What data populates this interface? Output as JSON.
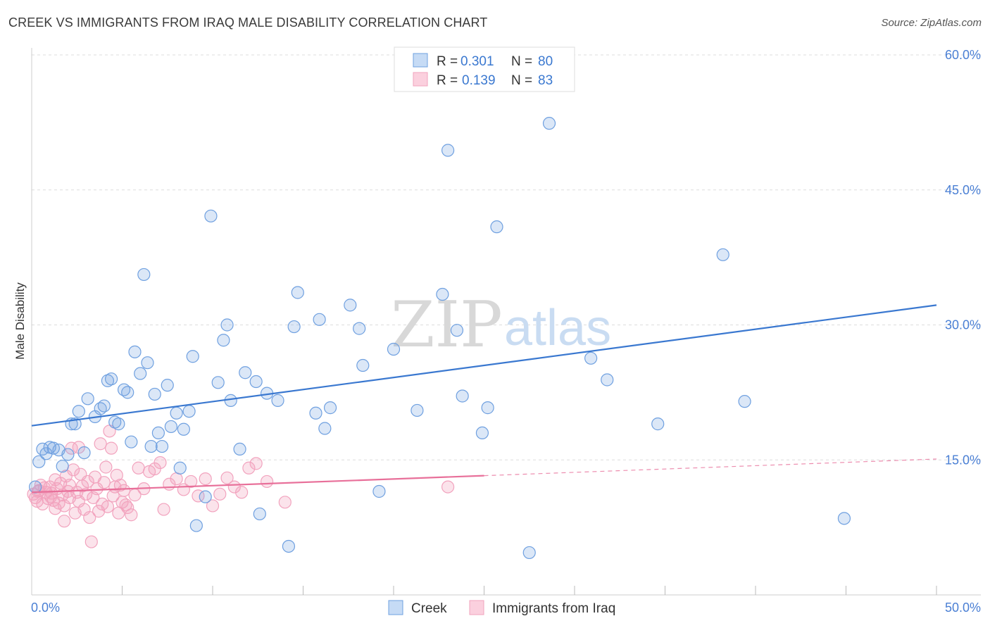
{
  "title": "CREEK VS IMMIGRANTS FROM IRAQ MALE DISABILITY CORRELATION CHART",
  "source": "Source: ZipAtlas.com",
  "watermark": {
    "zip": "ZIP",
    "atlas": "atlas"
  },
  "legend": {
    "rows": [
      {
        "r_label": "R =",
        "r_value": "0.301",
        "n_label": "N =",
        "n_value": "80"
      },
      {
        "r_label": "R =",
        "r_value": "0.139",
        "n_label": "N =",
        "n_value": "83"
      }
    ]
  },
  "chart_data": {
    "type": "scatter",
    "title": "CREEK VS IMMIGRANTS FROM IRAQ MALE DISABILITY CORRELATION CHART",
    "xlabel": "",
    "ylabel": "Male Disability",
    "xlim": [
      0,
      50
    ],
    "ylim": [
      0,
      60
    ],
    "x_tick_labels": [
      "0.0%",
      "50.0%"
    ],
    "y_ticks": [
      15,
      30,
      45,
      60
    ],
    "y_tick_labels": [
      "15.0%",
      "30.0%",
      "45.0%",
      "60.0%"
    ],
    "grid": true,
    "legend_position": "top-center",
    "series": [
      {
        "name": "Creek",
        "color": "#6fa0e0",
        "line_color": "#3a78d0",
        "r": 0.301,
        "n": 80,
        "trend": {
          "x": [
            0,
            50
          ],
          "y": [
            18.8,
            32.2
          ],
          "dashed_from": null
        },
        "points": [
          [
            0.2,
            12.0
          ],
          [
            0.4,
            14.8
          ],
          [
            0.6,
            16.2
          ],
          [
            0.8,
            15.7
          ],
          [
            1.0,
            16.4
          ],
          [
            1.2,
            16.3
          ],
          [
            1.5,
            16.1
          ],
          [
            1.7,
            14.3
          ],
          [
            2.0,
            15.6
          ],
          [
            2.2,
            19.0
          ],
          [
            2.4,
            19.0
          ],
          [
            2.6,
            20.4
          ],
          [
            2.9,
            15.8
          ],
          [
            3.1,
            21.8
          ],
          [
            3.5,
            19.8
          ],
          [
            3.8,
            20.7
          ],
          [
            4.0,
            21.0
          ],
          [
            4.2,
            23.8
          ],
          [
            4.4,
            24.0
          ],
          [
            4.6,
            19.2
          ],
          [
            4.8,
            19.0
          ],
          [
            5.1,
            22.8
          ],
          [
            5.3,
            22.5
          ],
          [
            5.5,
            17.0
          ],
          [
            5.7,
            27.0
          ],
          [
            6.0,
            24.6
          ],
          [
            6.2,
            35.6
          ],
          [
            6.4,
            25.8
          ],
          [
            6.6,
            16.5
          ],
          [
            6.8,
            22.3
          ],
          [
            7.0,
            18.0
          ],
          [
            7.2,
            16.5
          ],
          [
            7.5,
            23.3
          ],
          [
            7.7,
            18.7
          ],
          [
            8.0,
            20.2
          ],
          [
            8.2,
            14.1
          ],
          [
            8.4,
            18.4
          ],
          [
            8.7,
            20.4
          ],
          [
            8.9,
            26.5
          ],
          [
            9.1,
            7.7
          ],
          [
            9.6,
            10.9
          ],
          [
            9.9,
            42.1
          ],
          [
            10.3,
            23.6
          ],
          [
            10.6,
            28.3
          ],
          [
            10.8,
            30.0
          ],
          [
            11.0,
            21.6
          ],
          [
            11.5,
            16.2
          ],
          [
            11.8,
            24.7
          ],
          [
            12.6,
            9.0
          ],
          [
            12.4,
            23.7
          ],
          [
            13.0,
            22.4
          ],
          [
            13.6,
            21.6
          ],
          [
            14.2,
            5.4
          ],
          [
            14.5,
            29.8
          ],
          [
            14.7,
            33.6
          ],
          [
            15.7,
            20.2
          ],
          [
            15.9,
            30.6
          ],
          [
            16.2,
            18.5
          ],
          [
            16.5,
            20.8
          ],
          [
            17.6,
            32.2
          ],
          [
            18.1,
            29.6
          ],
          [
            18.3,
            25.5
          ],
          [
            19.2,
            11.5
          ],
          [
            20.0,
            27.3
          ],
          [
            21.3,
            20.5
          ],
          [
            22.7,
            33.4
          ],
          [
            23.0,
            49.4
          ],
          [
            23.5,
            29.4
          ],
          [
            23.8,
            22.1
          ],
          [
            24.9,
            18.0
          ],
          [
            25.2,
            20.8
          ],
          [
            25.7,
            40.9
          ],
          [
            27.5,
            4.7
          ],
          [
            28.6,
            52.4
          ],
          [
            30.9,
            26.3
          ],
          [
            31.8,
            23.9
          ],
          [
            34.6,
            19.0
          ],
          [
            38.2,
            37.8
          ],
          [
            39.4,
            21.5
          ],
          [
            44.9,
            8.5
          ]
        ]
      },
      {
        "name": "Immigrants from Iraq",
        "color": "#f2a3be",
        "line_color": "#e8709a",
        "r": 0.139,
        "n": 83,
        "trend": {
          "x": [
            0,
            50
          ],
          "y": [
            11.4,
            15.1
          ],
          "dashed_from": 25
        },
        "points": [
          [
            0.1,
            11.2
          ],
          [
            0.2,
            10.8
          ],
          [
            0.3,
            10.4
          ],
          [
            0.4,
            11.6
          ],
          [
            0.5,
            12.2
          ],
          [
            0.6,
            10.1
          ],
          [
            0.7,
            11.9
          ],
          [
            0.8,
            11.4
          ],
          [
            0.9,
            10.7
          ],
          [
            1.0,
            12.0
          ],
          [
            1.1,
            11.3
          ],
          [
            1.2,
            10.5
          ],
          [
            1.3,
            12.8
          ],
          [
            1.3,
            9.6
          ],
          [
            1.4,
            11.8
          ],
          [
            1.5,
            10.2
          ],
          [
            1.6,
            12.4
          ],
          [
            1.7,
            11.1
          ],
          [
            1.8,
            9.9
          ],
          [
            1.8,
            8.2
          ],
          [
            1.9,
            13.2
          ],
          [
            2.0,
            11.5
          ],
          [
            2.1,
            10.8
          ],
          [
            2.1,
            12.2
          ],
          [
            2.2,
            16.3
          ],
          [
            2.3,
            13.9
          ],
          [
            2.4,
            9.1
          ],
          [
            2.5,
            11.4
          ],
          [
            2.6,
            10.4
          ],
          [
            2.6,
            16.4
          ],
          [
            2.7,
            13.4
          ],
          [
            2.8,
            12.1
          ],
          [
            2.9,
            9.5
          ],
          [
            3.0,
            11.2
          ],
          [
            3.1,
            12.6
          ],
          [
            3.2,
            8.6
          ],
          [
            3.3,
            5.9
          ],
          [
            3.4,
            10.8
          ],
          [
            3.5,
            13.1
          ],
          [
            3.6,
            11.8
          ],
          [
            3.7,
            9.3
          ],
          [
            3.8,
            16.8
          ],
          [
            3.9,
            10.1
          ],
          [
            4.0,
            12.5
          ],
          [
            4.1,
            14.2
          ],
          [
            4.2,
            9.8
          ],
          [
            4.3,
            18.2
          ],
          [
            4.4,
            16.3
          ],
          [
            4.5,
            11.0
          ],
          [
            4.6,
            12.0
          ],
          [
            4.7,
            13.3
          ],
          [
            4.8,
            9.1
          ],
          [
            4.9,
            12.2
          ],
          [
            5.0,
            10.3
          ],
          [
            5.1,
            11.6
          ],
          [
            5.2,
            10.0
          ],
          [
            5.3,
            9.7
          ],
          [
            5.5,
            8.9
          ],
          [
            5.7,
            11.1
          ],
          [
            5.9,
            14.1
          ],
          [
            6.2,
            11.8
          ],
          [
            6.5,
            13.7
          ],
          [
            6.8,
            14.0
          ],
          [
            7.1,
            14.7
          ],
          [
            7.3,
            9.5
          ],
          [
            7.6,
            12.3
          ],
          [
            8.0,
            12.9
          ],
          [
            8.4,
            11.7
          ],
          [
            8.8,
            12.6
          ],
          [
            9.2,
            11.0
          ],
          [
            9.6,
            12.9
          ],
          [
            10.0,
            9.9
          ],
          [
            10.4,
            11.2
          ],
          [
            10.8,
            13.0
          ],
          [
            11.2,
            12.0
          ],
          [
            11.6,
            11.4
          ],
          [
            12.0,
            14.1
          ],
          [
            12.4,
            14.6
          ],
          [
            13.0,
            12.6
          ],
          [
            14.0,
            10.3
          ],
          [
            0.35,
            11.5
          ],
          [
            1.05,
            10.9
          ],
          [
            23.0,
            12.0
          ]
        ]
      }
    ]
  }
}
